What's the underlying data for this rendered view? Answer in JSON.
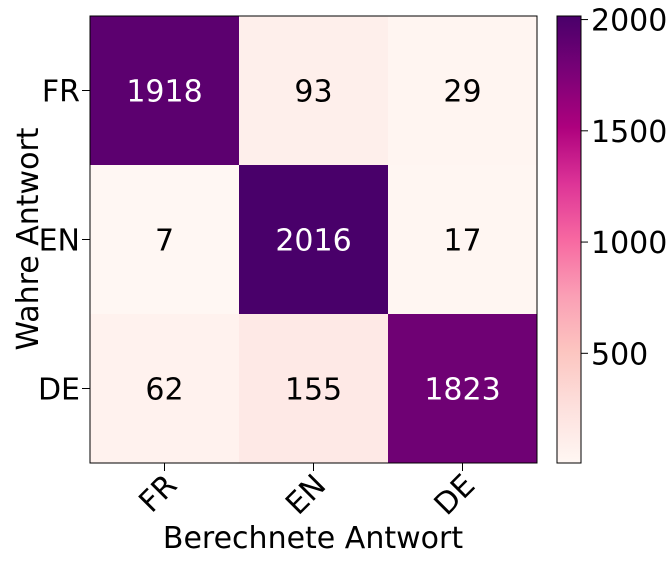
{
  "chart_data": {
    "type": "heatmap",
    "title": "",
    "xlabel": "Berechnete Antwort",
    "ylabel": "Wahre Antwort",
    "x_categories": [
      "FR",
      "EN",
      "DE"
    ],
    "y_categories": [
      "FR",
      "EN",
      "DE"
    ],
    "values": [
      [
        1918,
        93,
        29
      ],
      [
        7,
        2016,
        17
      ],
      [
        62,
        155,
        1823
      ]
    ],
    "colormap": "RdPu",
    "colorbar": {
      "range": [
        7,
        2016
      ],
      "ticks": [
        500,
        1000,
        1500,
        2000
      ],
      "tick_labels": [
        "500",
        "1000",
        "1500",
        "2000"
      ]
    },
    "grid": false,
    "text_color_dark": "#000000",
    "text_color_light": "#ffffff"
  }
}
